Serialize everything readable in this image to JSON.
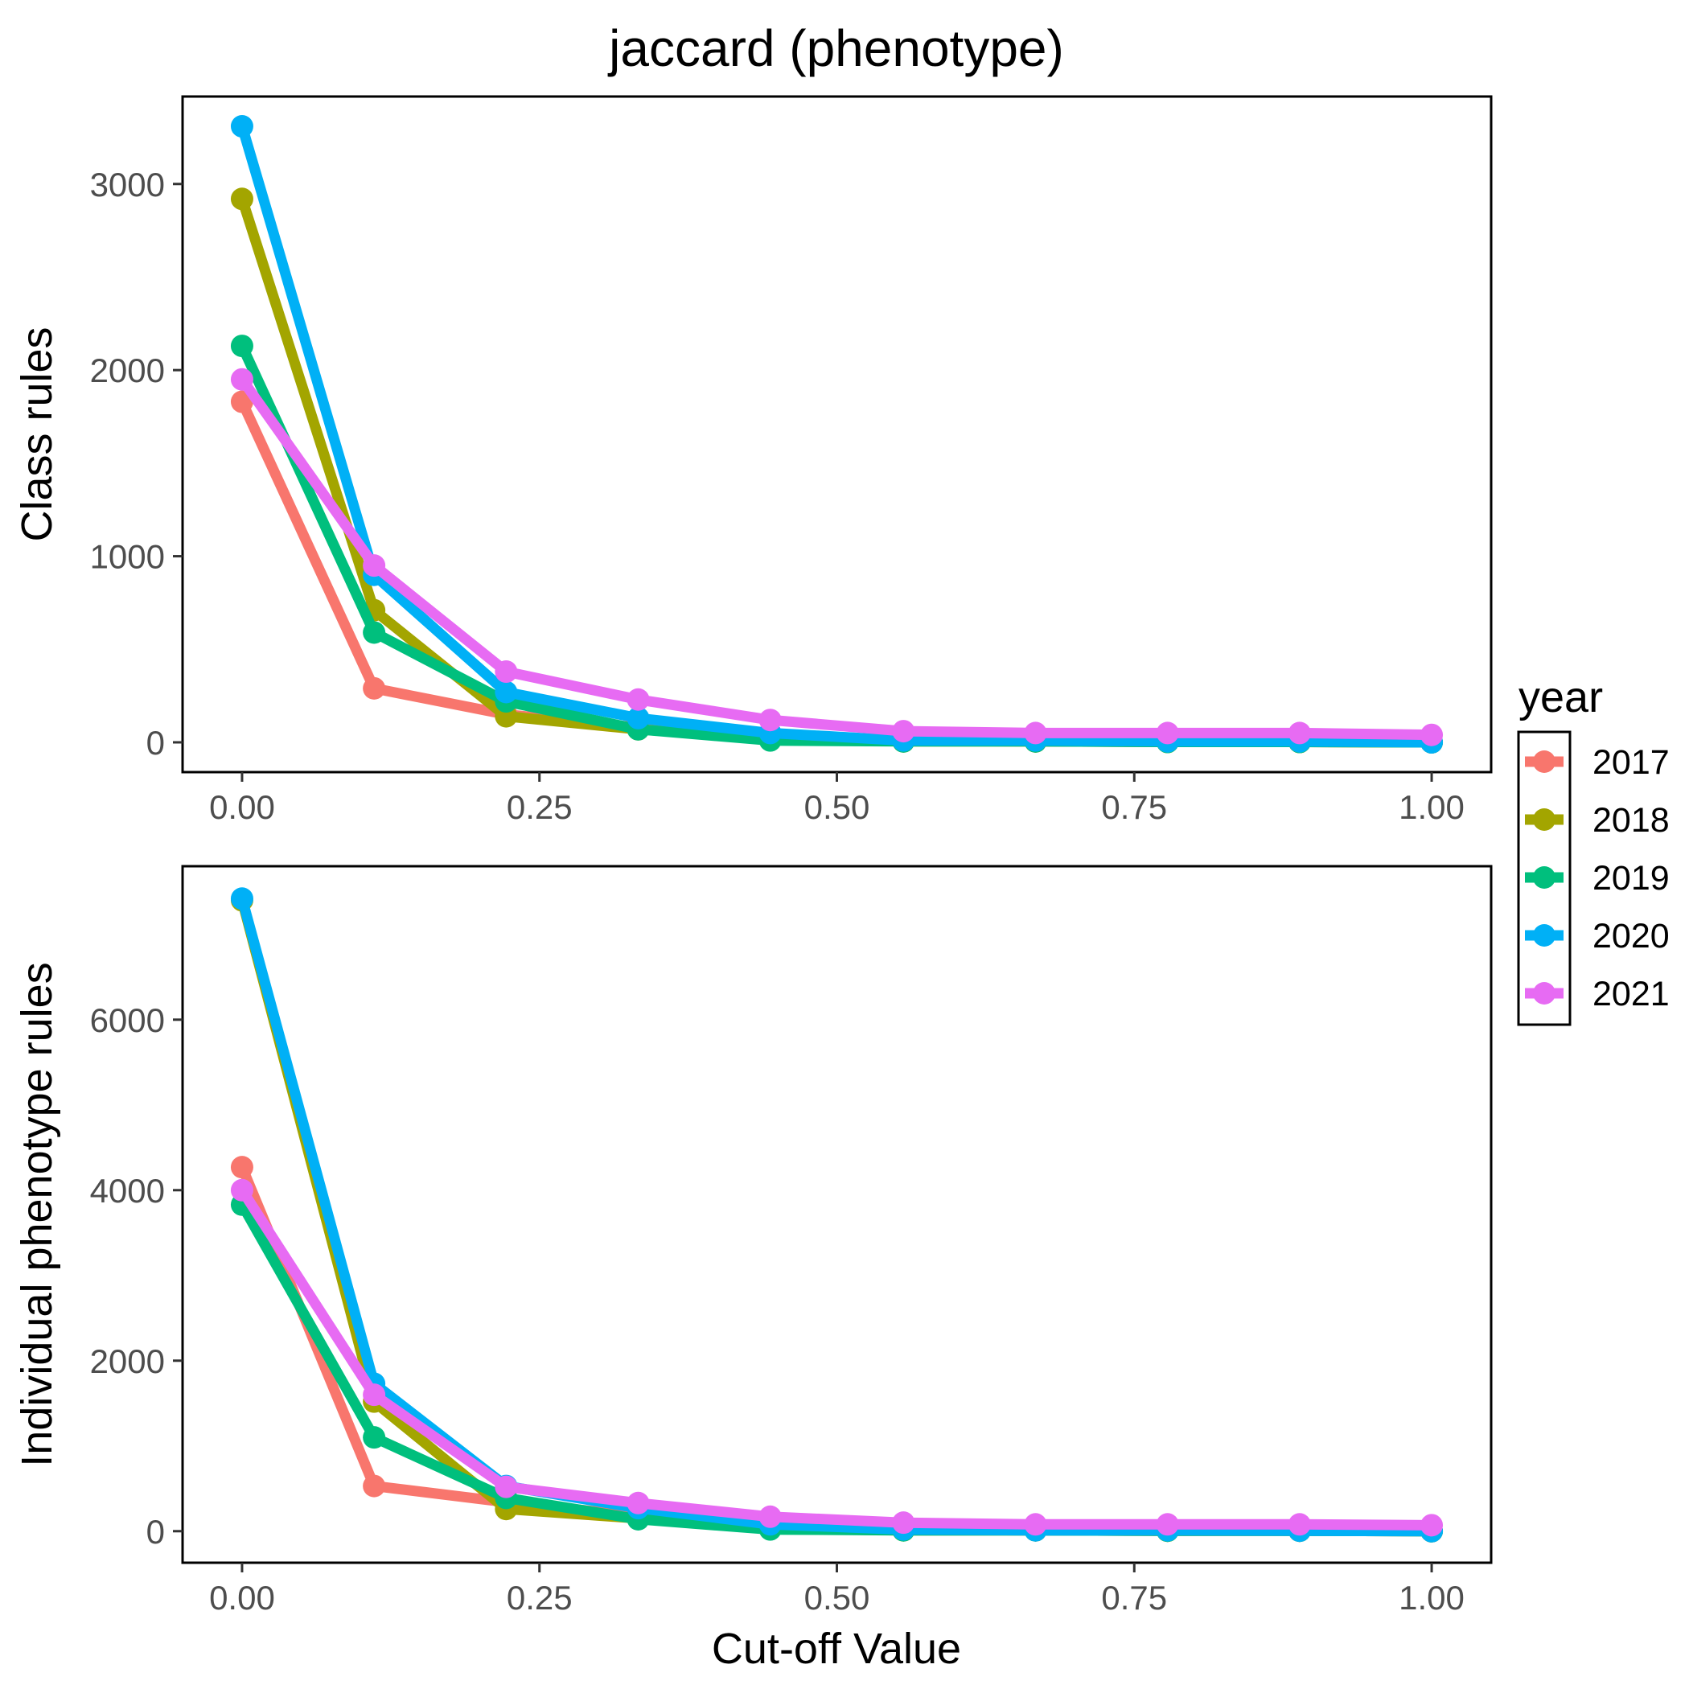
{
  "title": "jaccard (phenotype)",
  "legend": {
    "title": "year",
    "placement": "right",
    "entries": [
      "2017",
      "2018",
      "2019",
      "2020",
      "2021"
    ]
  },
  "colors": {
    "2017": "#F8766D",
    "2018": "#A3A500",
    "2019": "#00BF7D",
    "2020": "#00B0F6",
    "2021": "#E76BF3"
  },
  "chart_data": [
    {
      "type": "line",
      "panel": "top",
      "ylabel": "Class rules",
      "xlabel": "",
      "grid": false,
      "xlim": [
        -0.05,
        1.05
      ],
      "ylim": [
        -160,
        3470
      ],
      "x_ticks": [
        "0.00",
        "0.25",
        "0.50",
        "0.75",
        "1.00"
      ],
      "y_ticks": [
        "0",
        "1000",
        "2000",
        "3000"
      ],
      "x": [
        0,
        0.111,
        0.222,
        0.333,
        0.444,
        0.556,
        0.667,
        0.778,
        0.889,
        1.0
      ],
      "series": [
        {
          "name": "2017",
          "values": [
            1830,
            290,
            150,
            80,
            20,
            10,
            5,
            3,
            2,
            0
          ]
        },
        {
          "name": "2018",
          "values": [
            2920,
            710,
            140,
            70,
            20,
            5,
            5,
            2,
            2,
            0
          ]
        },
        {
          "name": "2019",
          "values": [
            2130,
            590,
            220,
            70,
            10,
            5,
            5,
            2,
            2,
            0
          ]
        },
        {
          "name": "2020",
          "values": [
            3310,
            900,
            270,
            130,
            50,
            10,
            10,
            5,
            5,
            0
          ]
        },
        {
          "name": "2021",
          "values": [
            1950,
            950,
            380,
            230,
            120,
            60,
            50,
            50,
            50,
            40
          ]
        }
      ]
    },
    {
      "type": "line",
      "panel": "bottom",
      "ylabel": "Individual phenotype rules",
      "xlabel": "Cut-off Value",
      "grid": false,
      "xlim": [
        -0.05,
        1.05
      ],
      "ylim": [
        -370,
        7800
      ],
      "x_ticks": [
        "0.00",
        "0.25",
        "0.50",
        "0.75",
        "1.00"
      ],
      "y_ticks": [
        "0",
        "2000",
        "4000",
        "6000"
      ],
      "x": [
        0,
        0.111,
        0.222,
        0.333,
        0.444,
        0.556,
        0.667,
        0.778,
        0.889,
        1.0
      ],
      "series": [
        {
          "name": "2017",
          "values": [
            4270,
            530,
            340,
            180,
            30,
            20,
            10,
            5,
            5,
            0
          ]
        },
        {
          "name": "2018",
          "values": [
            7400,
            1520,
            260,
            150,
            30,
            10,
            10,
            5,
            5,
            0
          ]
        },
        {
          "name": "2019",
          "values": [
            3830,
            1100,
            390,
            140,
            20,
            10,
            10,
            5,
            5,
            0
          ]
        },
        {
          "name": "2020",
          "values": [
            7420,
            1730,
            530,
            270,
            80,
            20,
            10,
            10,
            5,
            0
          ]
        },
        {
          "name": "2021",
          "values": [
            4000,
            1600,
            520,
            330,
            170,
            100,
            80,
            80,
            80,
            70
          ]
        }
      ]
    }
  ]
}
